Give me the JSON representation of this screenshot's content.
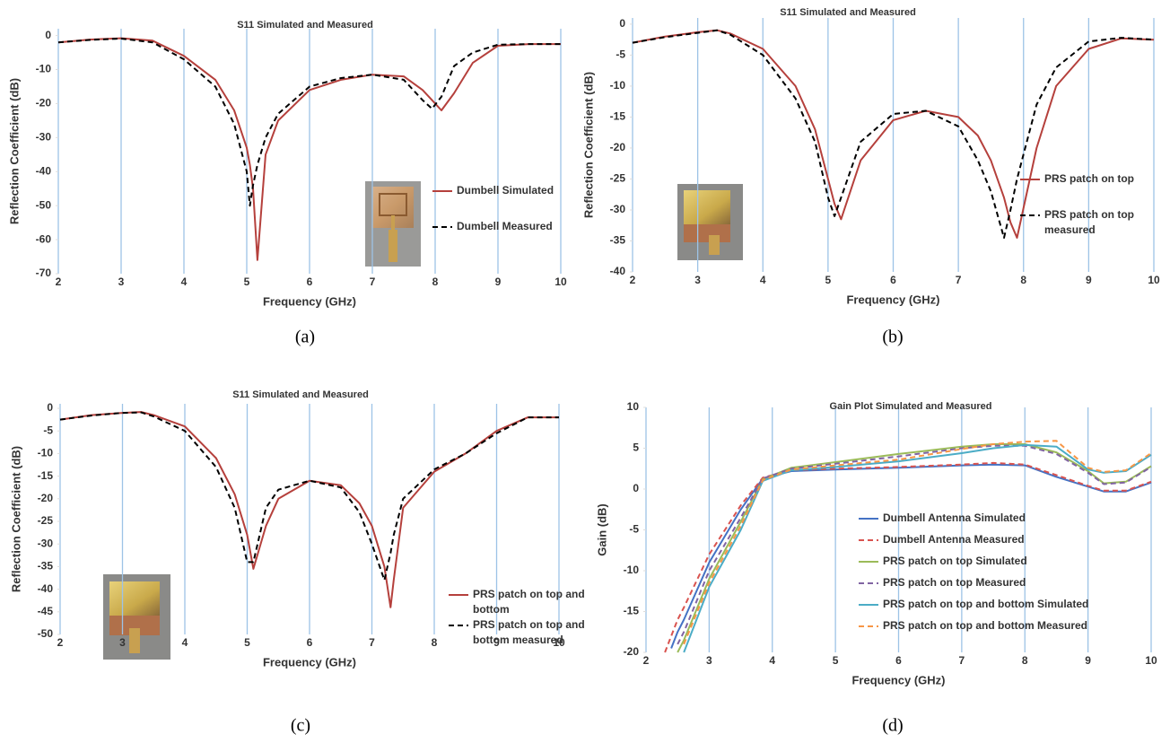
{
  "chart_data": [
    {
      "type": "line",
      "title": "S11  Simulated and Measured",
      "caption": "(a)",
      "xlabel": "Frequency (GHz)",
      "ylabel": "Reflection Coefficient (dB)",
      "x": [
        2,
        2.5,
        3,
        3.5,
        4,
        4.5,
        4.8,
        5.0,
        5.05,
        5.1,
        5.17,
        5.3,
        5.5,
        6,
        6.5,
        7,
        7.5,
        7.8,
        7.95,
        8.1,
        8.3,
        8.6,
        9,
        9.5,
        10
      ],
      "xlim": [
        2,
        10
      ],
      "xticks": [
        2,
        3,
        4,
        5,
        6,
        7,
        8,
        9,
        10
      ],
      "ylim": [
        -70,
        2
      ],
      "yticks": [
        0,
        -10,
        -20,
        -30,
        -40,
        -50,
        -60,
        -70
      ],
      "grid": "x",
      "series": [
        {
          "name": "Dumbell Simulated",
          "color": "#b5403c",
          "dashed": false,
          "values": [
            -2,
            -1.2,
            -0.8,
            -1.5,
            -6,
            -13,
            -22,
            -33,
            -38,
            -45,
            -66,
            -35,
            -25,
            -16,
            -13,
            -11.5,
            -12,
            -16,
            -19,
            -22,
            -17,
            -8,
            -3,
            -2.5,
            -2.5
          ]
        },
        {
          "name": "Dumbell Measured",
          "color": "#000000",
          "dashed": true,
          "values": [
            -2,
            -1.3,
            -0.9,
            -2,
            -7,
            -15,
            -26,
            -40,
            -50,
            -44,
            -38,
            -30,
            -23,
            -15,
            -12.5,
            -11.5,
            -13,
            -19,
            -21.5,
            -18,
            -9,
            -5,
            -2.7,
            -2.5,
            -2.5
          ]
        }
      ]
    },
    {
      "type": "line",
      "title": "S11  Simulated and Measured",
      "caption": "(b)",
      "xlabel": "Frequency (GHz)",
      "ylabel": "Reflection Coefficient (dB)",
      "x": [
        2,
        2.5,
        3,
        3.3,
        3.5,
        4,
        4.5,
        4.8,
        5.0,
        5.1,
        5.2,
        5.5,
        6,
        6.5,
        7,
        7.3,
        7.5,
        7.7,
        7.8,
        7.9,
        8.2,
        8.5,
        9,
        9.5,
        10
      ],
      "xlim": [
        2,
        10
      ],
      "xticks": [
        2,
        3,
        4,
        5,
        6,
        7,
        8,
        9,
        10
      ],
      "ylim": [
        -40,
        1
      ],
      "yticks": [
        0,
        -5,
        -10,
        -15,
        -20,
        -25,
        -30,
        -35,
        -40
      ],
      "grid": "x",
      "series": [
        {
          "name": "PRS  patch on top",
          "color": "#b5403c",
          "dashed": false,
          "values": [
            -3,
            -2,
            -1.3,
            -1,
            -1.5,
            -4,
            -10,
            -17,
            -25,
            -29,
            -31.5,
            -22,
            -15.5,
            -14,
            -15,
            -18,
            -22,
            -28,
            -32,
            -34.5,
            -20,
            -10,
            -4,
            -2.3,
            -2.5
          ]
        },
        {
          "name": "PRS  patch on top measured",
          "color": "#000000",
          "dashed": true,
          "values": [
            -3,
            -2.1,
            -1.4,
            -1,
            -1.7,
            -5,
            -12,
            -19,
            -28,
            -31,
            -28,
            -19,
            -14.5,
            -14,
            -16.5,
            -22,
            -27,
            -34.5,
            -30,
            -25,
            -13,
            -7,
            -2.8,
            -2.2,
            -2.5
          ]
        }
      ]
    },
    {
      "type": "line",
      "title": "S11  Simulated and Measured",
      "caption": "(c)",
      "xlabel": "Frequency (GHz)",
      "ylabel": "Reflection Coefficient (dB)",
      "x": [
        2,
        2.5,
        3,
        3.3,
        3.5,
        4,
        4.5,
        4.8,
        5.0,
        5.1,
        5.3,
        5.5,
        6,
        6.5,
        6.8,
        7.0,
        7.2,
        7.3,
        7.35,
        7.5,
        8,
        8.5,
        9,
        9.5,
        10
      ],
      "xlim": [
        2,
        10
      ],
      "xticks": [
        2,
        3,
        4,
        5,
        6,
        7,
        8,
        9,
        10
      ],
      "ylim": [
        -50,
        1
      ],
      "yticks": [
        0,
        -5,
        -10,
        -15,
        -20,
        -25,
        -30,
        -35,
        -40,
        -45,
        -50
      ],
      "grid": "x",
      "series": [
        {
          "name": "PRS patch on top and bottom",
          "color": "#b5403c",
          "dashed": false,
          "values": [
            -2.5,
            -1.5,
            -1,
            -0.8,
            -1.5,
            -4,
            -11,
            -19,
            -28,
            -35.5,
            -26,
            -20,
            -16,
            -17,
            -21,
            -26,
            -35,
            -44,
            -38,
            -22,
            -14,
            -10,
            -5,
            -2,
            -2
          ]
        },
        {
          "name": "PRS patch on top and bottom measured",
          "color": "#000000",
          "dashed": true,
          "values": [
            -2.5,
            -1.6,
            -1,
            -0.9,
            -1.8,
            -5,
            -13,
            -22,
            -34,
            -34,
            -22,
            -18,
            -16,
            -17.5,
            -23,
            -30,
            -38,
            -32,
            -28,
            -20,
            -13.5,
            -10,
            -5.5,
            -2,
            -2
          ]
        }
      ]
    },
    {
      "type": "line",
      "title": "Gain Plot Simulated and Measured",
      "caption": "(d)",
      "xlabel": "Frequency (GHz)",
      "ylabel": "Gain (dB)",
      "x": [
        2.3,
        2.4,
        2.5,
        2.6,
        3,
        3.5,
        3.85,
        4.3,
        5,
        6,
        7,
        7.5,
        8,
        8.5,
        9,
        9.25,
        9.6,
        10
      ],
      "xlim": [
        2,
        10
      ],
      "xticks": [
        2,
        3,
        4,
        5,
        6,
        7,
        8,
        9,
        10
      ],
      "ylim": [
        -20,
        10
      ],
      "yticks": [
        10,
        5,
        0,
        -5,
        -10,
        -15,
        -20
      ],
      "grid": "x",
      "series": [
        {
          "name": "Dumbell Antenna Simulated",
          "color": "#4472c4",
          "dashed": false,
          "values": [
            null,
            -19.5,
            -17.5,
            -16,
            -9,
            -2.5,
            1.3,
            2.2,
            2.4,
            2.6,
            2.9,
            3.0,
            2.9,
            1.5,
            0.3,
            -0.3,
            -0.3,
            0.8
          ]
        },
        {
          "name": "Dumbell Antenna Measured",
          "color": "#d9534f",
          "dashed": true,
          "values": [
            -20,
            -18,
            -16,
            -14.5,
            -8,
            -2,
            1.4,
            2.3,
            2.5,
            2.7,
            3,
            3.2,
            3,
            1.7,
            0.4,
            -0.2,
            -0.2,
            0.9
          ]
        },
        {
          "name": "PRS patch on top Simulated",
          "color": "#9bbb59",
          "dashed": false,
          "values": [
            null,
            null,
            -20,
            -18.5,
            -11,
            -4,
            1.2,
            2.6,
            3.3,
            4.3,
            5.2,
            5.5,
            5.5,
            4.5,
            2.2,
            0.7,
            0.9,
            2.8
          ]
        },
        {
          "name": "PRS patch on top Measured",
          "color": "#8064a2",
          "dashed": true,
          "values": [
            null,
            null,
            -19,
            -17.5,
            -10,
            -3.5,
            1.3,
            2.5,
            3.1,
            4,
            5,
            5.3,
            5.3,
            4.3,
            2,
            0.6,
            0.8,
            2.7
          ]
        },
        {
          "name": "PRS patch on top and bottom Simulated",
          "color": "#4bacc6",
          "dashed": false,
          "values": [
            null,
            null,
            null,
            -20,
            -12,
            -5,
            1,
            2.3,
            2.7,
            3.4,
            4.4,
            5,
            5.4,
            5.2,
            2.4,
            2,
            2.2,
            4.2
          ]
        },
        {
          "name": "PRS patch on top and bottom Measured",
          "color": "#f79646",
          "dashed": true,
          "values": [
            null,
            null,
            null,
            -19,
            -11.5,
            -4.5,
            1.1,
            2.4,
            2.9,
            3.6,
            4.9,
            5.5,
            5.8,
            5.9,
            2.6,
            2.1,
            2.3,
            4.4
          ]
        }
      ]
    }
  ]
}
